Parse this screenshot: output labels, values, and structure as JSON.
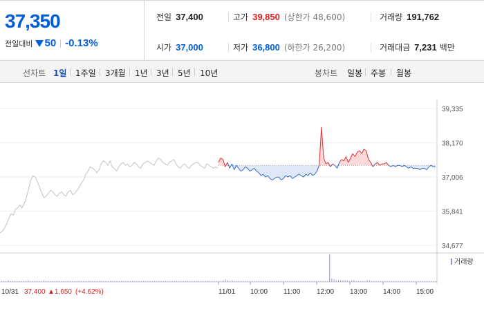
{
  "summary": {
    "current_price": "37,350",
    "change_label": "전일대비",
    "change_value": "50",
    "change_direction_icon": "down-triangle-icon",
    "change_rate": "-0.13%",
    "prev_close_label": "전일",
    "prev_close": "37,400",
    "high_label": "고가",
    "high": "39,850",
    "upper_limit": "(상한가 48,600)",
    "volume_label": "거래량",
    "volume": "191,762",
    "open_label": "시가",
    "open": "37,000",
    "low_label": "저가",
    "low": "36,800",
    "lower_limit": "(하한가 26,200)",
    "amount_label": "거래대금",
    "amount": "7,231",
    "amount_unit": "백만"
  },
  "toolbar": {
    "line_label": "선차트",
    "line_items": [
      "1일",
      "1주일",
      "3개월",
      "1년",
      "3년",
      "5년",
      "10년"
    ],
    "candle_label": "봉차트",
    "candle_items": [
      "일봉",
      "주봉",
      "월봉"
    ]
  },
  "chart_data": {
    "type": "line",
    "title": "",
    "ylabel": "",
    "y_ticks": [
      39335,
      38170,
      37006,
      35841,
      34677
    ],
    "y_tick_labels": [
      "39,335",
      "38,170",
      "37,006",
      "35,841",
      "34,677"
    ],
    "ylim": [
      34677,
      39335
    ],
    "reference_price": 37400,
    "x_tick_labels": [
      "11/01",
      "10:00",
      "11:00",
      "12:00",
      "13:00",
      "14:00",
      "15:00"
    ],
    "prev_day_label": "10/31",
    "prev_day_price": "37,400",
    "prev_day_change": "▲1,650",
    "prev_day_rate": "(+4.62%)",
    "volume_legend": "거래량",
    "colors": {
      "prev": "#c2c2c2",
      "up": "#e02d2d",
      "down": "#2a64c5",
      "up_fill": "#f7cfd0",
      "down_fill": "#d6e2f5",
      "volume": "#9d8fc9"
    },
    "series": [
      {
        "part": "previous-day",
        "x_range": [
          "10/31 09:00",
          "10/31 15:30"
        ],
        "values": [
          35100,
          35150,
          35250,
          35400,
          35600,
          35750,
          35700,
          35900,
          35950,
          36050,
          35950,
          36100,
          36300,
          36600,
          36900,
          37050,
          37000,
          36850,
          36650,
          36450,
          36300,
          36350,
          36450,
          36550,
          36500,
          36400,
          36350,
          36450,
          36500,
          36400,
          36350,
          36500,
          36550,
          36400,
          36450,
          36550,
          36650,
          36800,
          36900,
          37100,
          37200,
          37350,
          37300,
          37250,
          37150,
          37250,
          37450,
          37550,
          37500,
          37400,
          37550,
          37350,
          37300,
          37200,
          37350,
          37450,
          37500,
          37400,
          37450,
          37350,
          37400,
          37500,
          37450,
          37350,
          37300,
          37450,
          37500,
          37550,
          37500,
          37450,
          37400,
          37550,
          37650,
          37600,
          37500,
          37450,
          37400,
          37500,
          37550,
          37600,
          37450,
          37350,
          37300,
          37400,
          37450,
          37350,
          37300,
          37400,
          37450,
          37500,
          37500,
          37400,
          37350,
          37300,
          37450,
          37400,
          37350,
          37300,
          37350,
          37300
        ]
      },
      {
        "part": "current-day",
        "x_range": [
          "11/01 09:00",
          "11/01 15:30"
        ],
        "values": [
          37500,
          37650,
          37600,
          37350,
          37500,
          37300,
          37450,
          37250,
          37400,
          37300,
          37200,
          37250,
          37350,
          37300,
          37200,
          37250,
          37300,
          37200,
          37150,
          37050,
          37100,
          37000,
          37050,
          36950,
          36900,
          36950,
          37000,
          37000,
          36900,
          36950,
          37050,
          37000,
          37050,
          36950,
          37000,
          37050,
          37100,
          37050,
          37000,
          37100,
          37050,
          37150,
          37050,
          37100,
          37200,
          37400,
          38700,
          37650,
          37450,
          37500,
          37350,
          37450,
          37400,
          37300,
          37500,
          37600,
          37550,
          37700,
          37500,
          37650,
          37800,
          37700,
          37850,
          37900,
          37800,
          37950,
          37900,
          37600,
          37500,
          37350,
          37450,
          37500,
          37400,
          37450,
          37450,
          37500,
          37400,
          37350,
          37400,
          37350,
          37400,
          37400,
          37350,
          37400,
          37350,
          37300,
          37350,
          37300,
          37300,
          37300,
          37250,
          37300,
          37300,
          37250,
          37350,
          37400,
          37350,
          37350
        ]
      }
    ],
    "volume": [
      1,
      1,
      1,
      2,
      1,
      1,
      1,
      1,
      1,
      1,
      1,
      1,
      2,
      1,
      1,
      1,
      1,
      1,
      1,
      2,
      1,
      1,
      1,
      1,
      1,
      1,
      1,
      1,
      1,
      1,
      1,
      1,
      1,
      1,
      1,
      1,
      1,
      1,
      1,
      1,
      1,
      1,
      1,
      1,
      1,
      1,
      1,
      1,
      1,
      1,
      1,
      1,
      1,
      1,
      1,
      1,
      1,
      1,
      1,
      1,
      1,
      1,
      1,
      1,
      1,
      1,
      1,
      1,
      1,
      1,
      1,
      1,
      1,
      1,
      1,
      1,
      1,
      1,
      1,
      1,
      1,
      1,
      1,
      1,
      1,
      1,
      1,
      1,
      1,
      1,
      1,
      1,
      1,
      1,
      1,
      1,
      1,
      1,
      1,
      1,
      2,
      3,
      2,
      1,
      2,
      1,
      1,
      1,
      1,
      1,
      1,
      1,
      1,
      1,
      1,
      1,
      1,
      1,
      1,
      1,
      1,
      1,
      1,
      1,
      1,
      1,
      1,
      1,
      1,
      1,
      1,
      1,
      1,
      1,
      1,
      1,
      1,
      1,
      1,
      1,
      1,
      1,
      1,
      1,
      1,
      1,
      1,
      1,
      32,
      4,
      3,
      2,
      2,
      2,
      2,
      2,
      2,
      1,
      2,
      2,
      1,
      1,
      1,
      1,
      1,
      2,
      2,
      1,
      1,
      1,
      1,
      1,
      1,
      1,
      1,
      1,
      1,
      1,
      1,
      1,
      1,
      1,
      1,
      1,
      1,
      1,
      1,
      1,
      1,
      1,
      1,
      1,
      1,
      1,
      1,
      1,
      1
    ]
  }
}
